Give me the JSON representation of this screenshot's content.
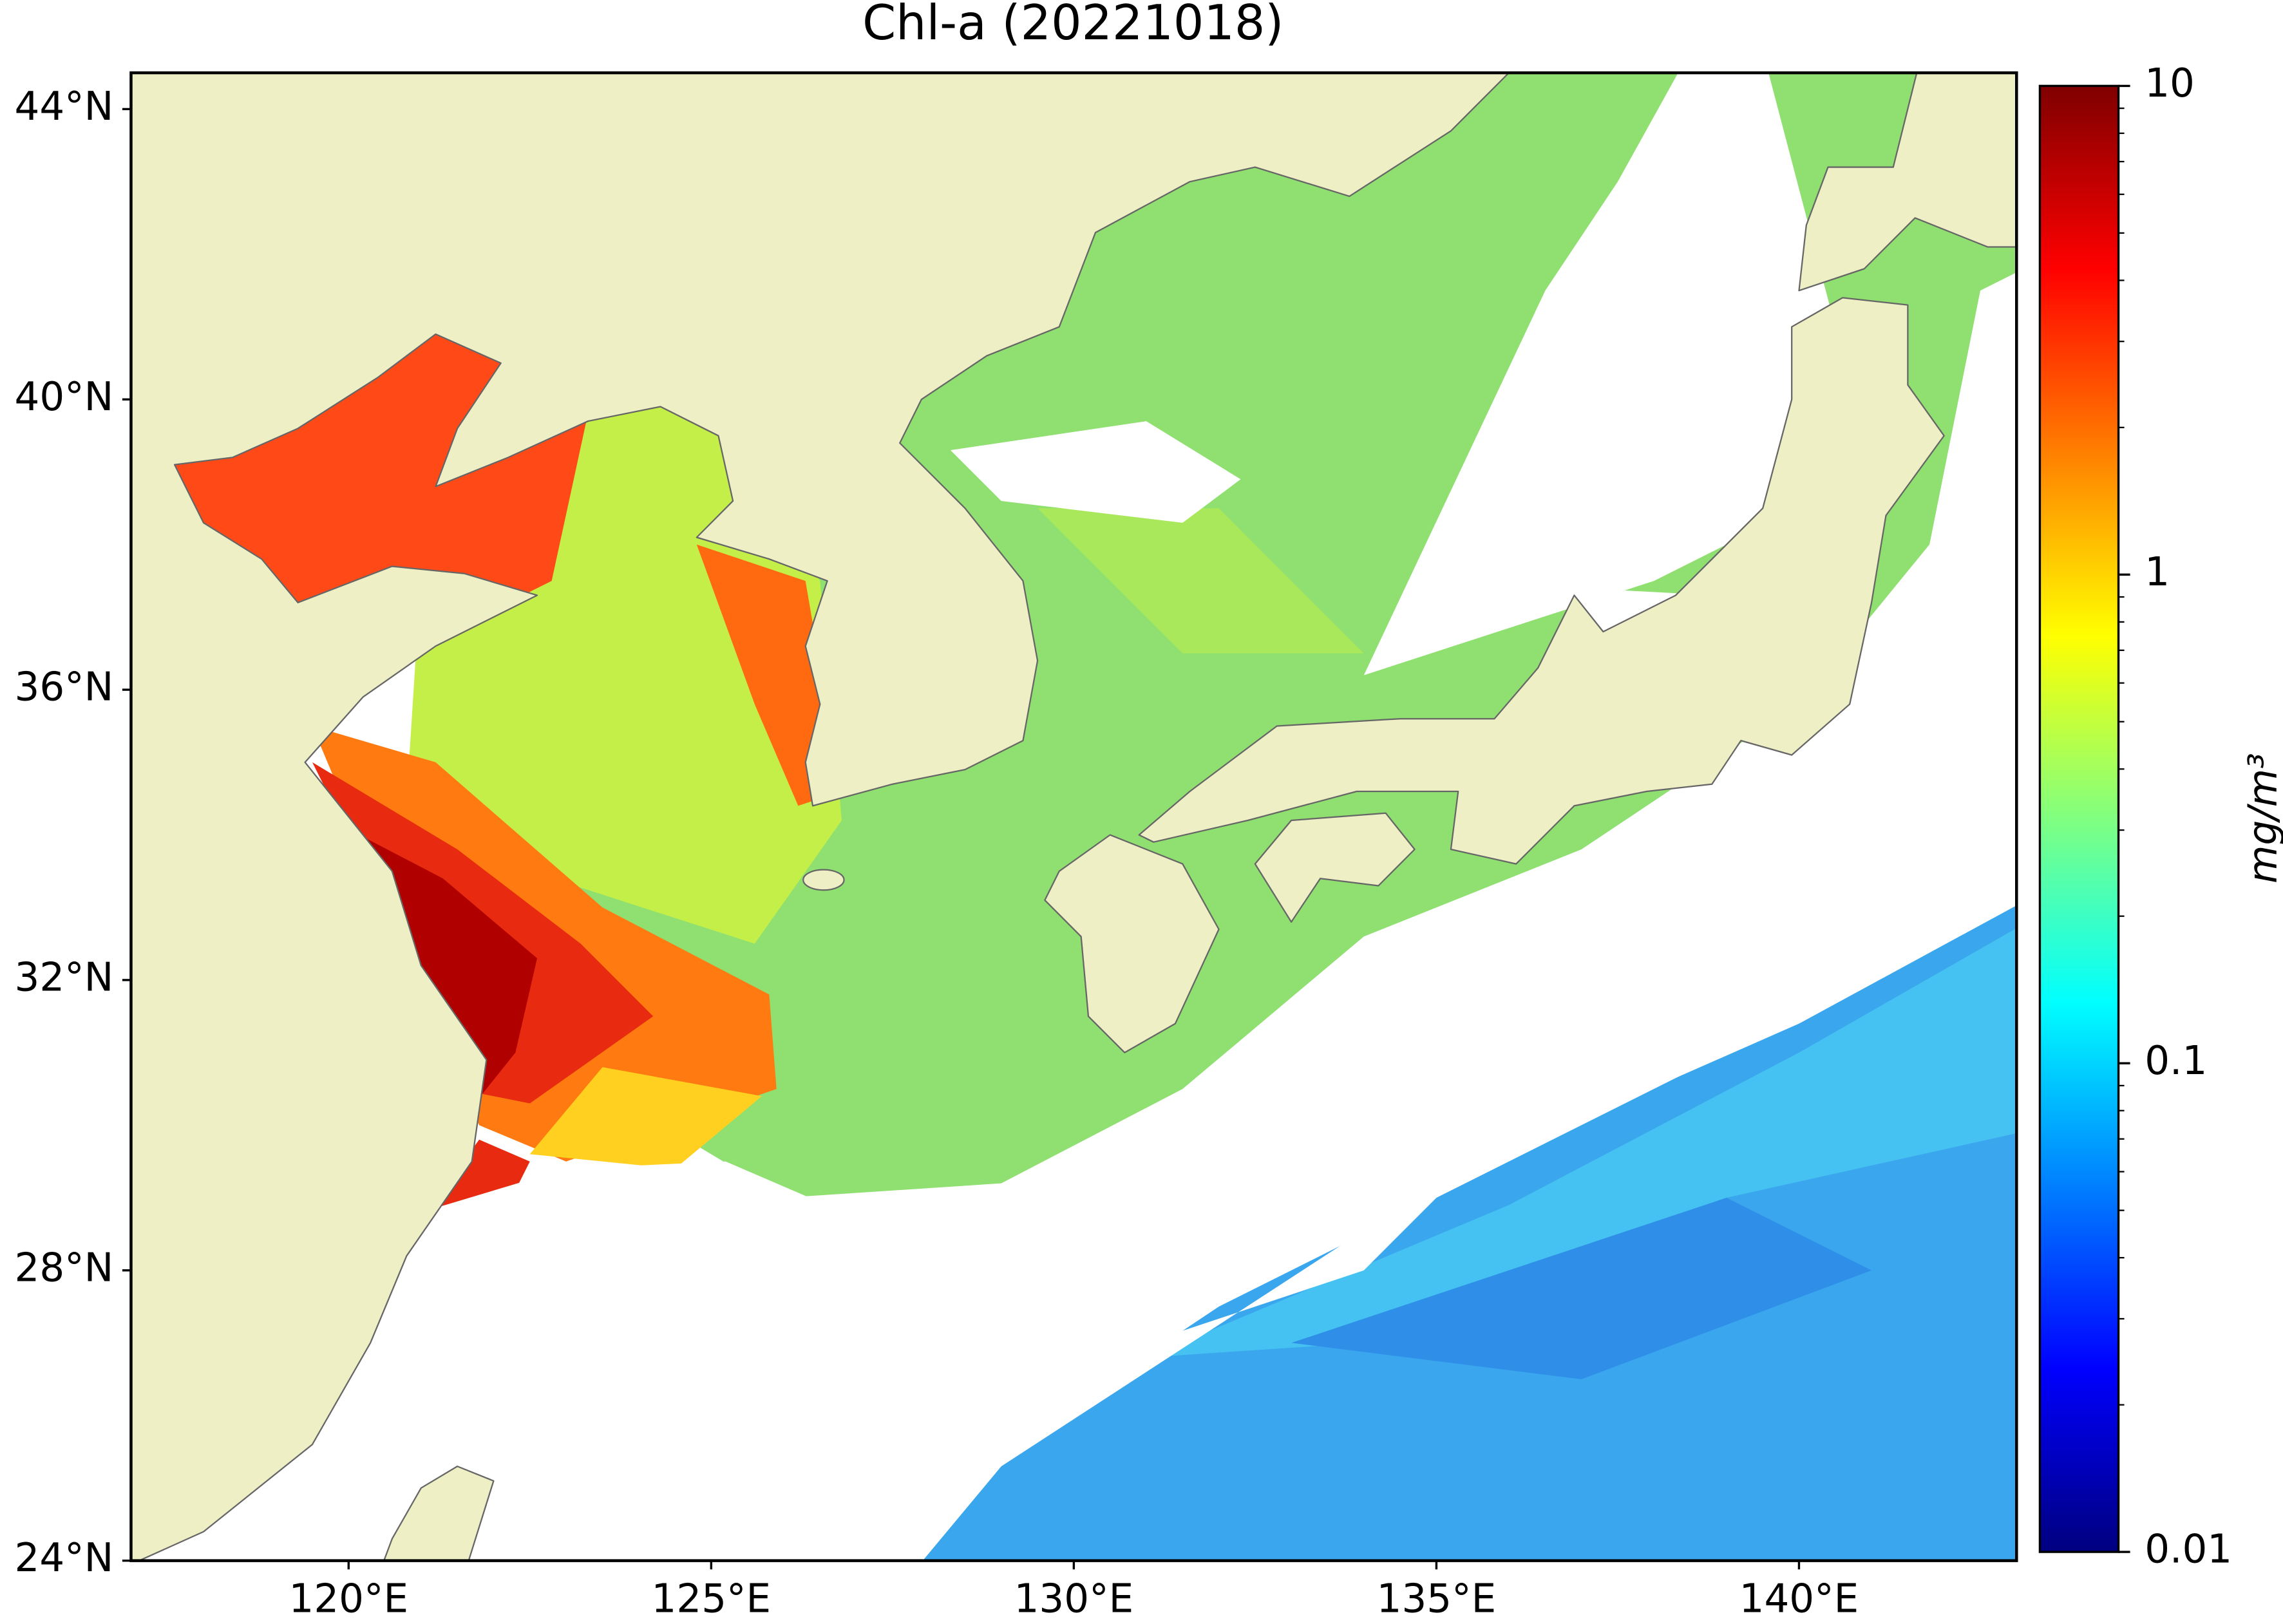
{
  "chart_data": {
    "type": "map",
    "title": "Chl-a (20221018)",
    "xlim": [
      117,
      143
    ],
    "ylim": [
      24,
      44.5
    ],
    "xticks": [
      {
        "value": 120,
        "label": "120°E"
      },
      {
        "value": 125,
        "label": "125°E"
      },
      {
        "value": 130,
        "label": "130°E"
      },
      {
        "value": 135,
        "label": "135°E"
      },
      {
        "value": 140,
        "label": "140°E"
      }
    ],
    "yticks": [
      {
        "value": 24,
        "label": "24°N"
      },
      {
        "value": 28,
        "label": "28°N"
      },
      {
        "value": 32,
        "label": "32°N"
      },
      {
        "value": 36,
        "label": "36°N"
      },
      {
        "value": 40,
        "label": "40°N"
      },
      {
        "value": 44,
        "label": "44°N"
      }
    ],
    "colorbar": {
      "label": "mg/m³",
      "scale": "log",
      "lim": [
        0.01,
        10
      ],
      "ticks": [
        0.01,
        0.1,
        1,
        10
      ]
    }
  }
}
